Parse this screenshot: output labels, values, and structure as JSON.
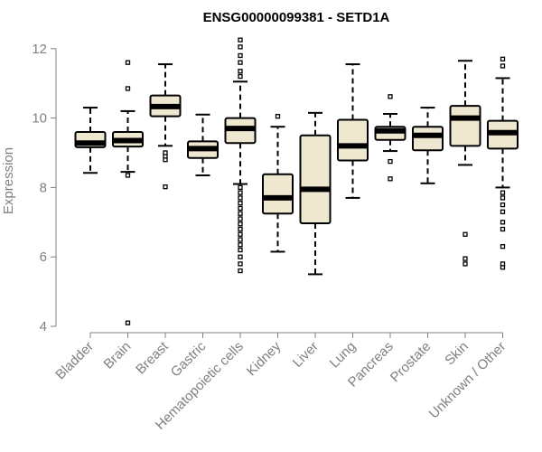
{
  "chart_data": {
    "type": "boxplot",
    "title": "ENSG00000099381 - SETD1A",
    "ylabel": "Expression",
    "xlabel": "",
    "ylim": [
      4,
      12
    ],
    "yticks": [
      4,
      6,
      8,
      10,
      12
    ],
    "box_fill": "#efe8d0",
    "axis_color": "#808080",
    "categories": [
      "Bladder",
      "Brain",
      "Breast",
      "Gastric",
      "Hematopoietic cells",
      "Kidney",
      "Liver",
      "Lung",
      "Pancreas",
      "Prostate",
      "Skin",
      "Unknown / Other"
    ],
    "boxes": [
      {
        "name": "Bladder",
        "whisker_low": 8.42,
        "q1": 9.16,
        "median": 9.28,
        "q3": 9.6,
        "whisker_high": 10.3,
        "outliers": []
      },
      {
        "name": "Brain",
        "whisker_low": 8.45,
        "q1": 9.18,
        "median": 9.35,
        "q3": 9.6,
        "whisker_high": 10.2,
        "outliers": [
          4.1,
          8.35,
          10.85,
          11.6
        ]
      },
      {
        "name": "Breast",
        "whisker_low": 9.2,
        "q1": 10.05,
        "median": 10.33,
        "q3": 10.65,
        "whisker_high": 11.55,
        "outliers": [
          8.02,
          8.8,
          8.9,
          9.0
        ]
      },
      {
        "name": "Gastric",
        "whisker_low": 8.35,
        "q1": 8.85,
        "median": 9.12,
        "q3": 9.33,
        "whisker_high": 10.1,
        "outliers": []
      },
      {
        "name": "Hematopoietic cells",
        "whisker_low": 8.1,
        "q1": 9.28,
        "median": 9.7,
        "q3": 10.0,
        "whisker_high": 11.05,
        "outliers": [
          5.6,
          5.8,
          6.0,
          6.2,
          6.35,
          6.5,
          6.65,
          6.8,
          6.95,
          7.1,
          7.25,
          7.4,
          7.55,
          7.7,
          7.85,
          8.0,
          11.2,
          11.35,
          11.6,
          11.8,
          12.05,
          12.25
        ]
      },
      {
        "name": "Kidney",
        "whisker_low": 6.15,
        "q1": 7.25,
        "median": 7.7,
        "q3": 8.38,
        "whisker_high": 9.75,
        "outliers": [
          10.05
        ]
      },
      {
        "name": "Liver",
        "whisker_low": 5.5,
        "q1": 6.97,
        "median": 7.95,
        "q3": 9.5,
        "whisker_high": 10.15,
        "outliers": []
      },
      {
        "name": "Lung",
        "whisker_low": 7.7,
        "q1": 8.78,
        "median": 9.2,
        "q3": 9.95,
        "whisker_high": 11.55,
        "outliers": []
      },
      {
        "name": "Pancreas",
        "whisker_low": 9.05,
        "q1": 9.37,
        "median": 9.63,
        "q3": 9.75,
        "whisker_high": 10.12,
        "outliers": [
          8.25,
          8.75,
          10.62
        ]
      },
      {
        "name": "Prostate",
        "whisker_low": 8.12,
        "q1": 9.07,
        "median": 9.5,
        "q3": 9.75,
        "whisker_high": 10.3,
        "outliers": []
      },
      {
        "name": "Skin",
        "whisker_low": 8.65,
        "q1": 9.2,
        "median": 10.0,
        "q3": 10.35,
        "whisker_high": 11.65,
        "outliers": [
          5.8,
          5.95,
          6.65
        ]
      },
      {
        "name": "Unknown / Other",
        "whisker_low": 8.0,
        "q1": 9.12,
        "median": 9.58,
        "q3": 9.92,
        "whisker_high": 11.15,
        "outliers": [
          5.7,
          5.8,
          6.3,
          6.8,
          7.0,
          7.3,
          7.5,
          7.7,
          7.85,
          11.5,
          11.7
        ]
      }
    ]
  }
}
